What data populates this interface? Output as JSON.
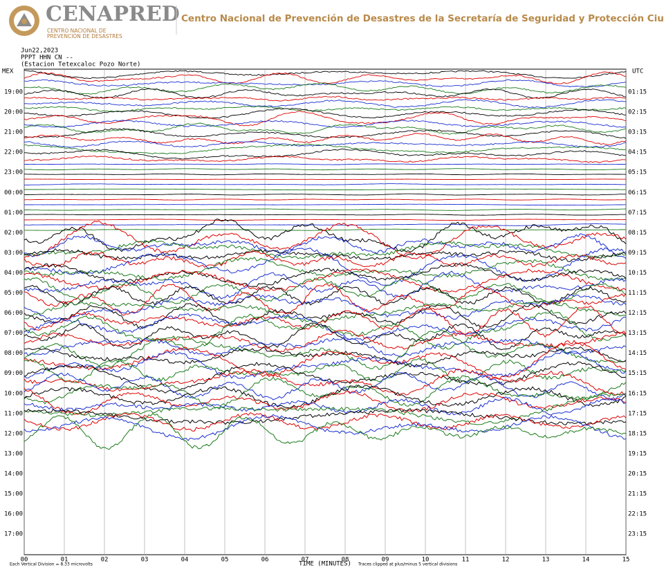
{
  "header": {
    "brand": "CENAPRED",
    "brand_sub_1": "CENTRO NACIONAL DE",
    "brand_sub_2": "PREVENCIÓN DE DESASTRES",
    "title": "Centro Nacional de Prevención de Desastres de la Secretaría de Seguridad y Protección Ciudadana"
  },
  "plot": {
    "date": "Jun22,2023",
    "channel": "PPPT HHN CN --",
    "station": "(Estacion Tetexcaloc Pozo Norte)",
    "left_zone": "MEX",
    "right_zone": "UTC",
    "left_times": [
      "19:00",
      "20:00",
      "21:00",
      "22:00",
      "23:00",
      "00:00",
      "01:00",
      "02:00",
      "03:00",
      "04:00",
      "05:00",
      "06:00",
      "07:00",
      "08:00",
      "09:00",
      "10:00",
      "11:00",
      "12:00",
      "13:00",
      "14:00",
      "15:00",
      "16:00",
      "17:00"
    ],
    "right_times": [
      "01:15",
      "02:15",
      "03:15",
      "04:15",
      "05:15",
      "06:15",
      "07:15",
      "08:15",
      "09:15",
      "10:15",
      "11:15",
      "12:15",
      "13:15",
      "14:15",
      "15:15",
      "16:15",
      "17:15",
      "18:15",
      "19:15",
      "20:15",
      "21:15",
      "22:15",
      "23:15"
    ],
    "minutes": [
      "00",
      "01",
      "02",
      "03",
      "04",
      "05",
      "06",
      "07",
      "08",
      "09",
      "10",
      "11",
      "12",
      "13",
      "14",
      "15"
    ],
    "x_title": "TIME (MINUTES)",
    "scale_note": "Each Vertical Division = 8.33 microvolts",
    "clip_note": "Traces clipped at plus/minus 5 vertical divisions"
  }
}
